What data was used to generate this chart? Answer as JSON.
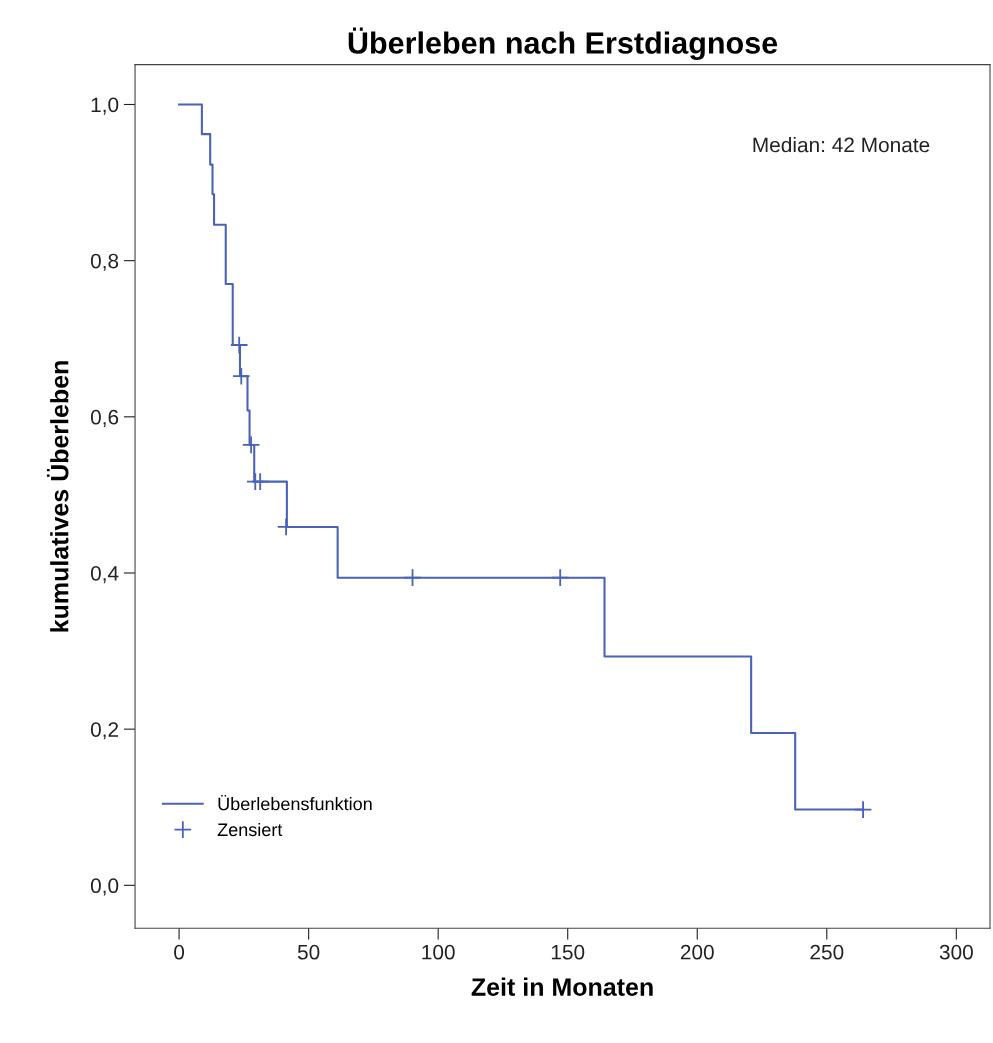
{
  "chart_data": {
    "type": "step",
    "title": "Überleben nach Erstdiagnose",
    "xlabel": "Zeit in Monaten",
    "ylabel": "kumulatives Überleben",
    "annotations": [
      "Median: 42 Monate"
    ],
    "series": [
      {
        "name": "Überlebensfunktion",
        "color": "#4a62b8",
        "marker": "none",
        "x": [
          0,
          8.8,
          12.0,
          12.9,
          13.5,
          18.0,
          20.7,
          23.5,
          26.4,
          27.2,
          29.0,
          41.6,
          61.2,
          164.2,
          220.8,
          237.8,
          264
        ],
        "values": [
          1.0,
          0.962,
          0.923,
          0.885,
          0.846,
          0.77,
          0.692,
          0.652,
          0.608,
          0.564,
          0.517,
          0.459,
          0.394,
          0.293,
          0.195,
          0.097,
          0.097
        ]
      },
      {
        "name": "Zensiert",
        "type": "scatter",
        "color": "#4a62b8",
        "marker": "cross",
        "x": [
          23.2,
          24.0,
          27.8,
          29.4,
          31.3,
          41.3,
          90.1,
          147.1,
          264
        ],
        "values": [
          0.692,
          0.652,
          0.564,
          0.517,
          0.517,
          0.459,
          0.394,
          0.394,
          0.097
        ]
      }
    ],
    "xlim": [
      -17,
      313
    ],
    "ylim": [
      -0.055,
      1.051
    ],
    "xticks": [
      0,
      50,
      100,
      150,
      200,
      250,
      300
    ],
    "yticks": [
      {
        "value": 0.0,
        "label": "0,0"
      },
      {
        "value": 0.2,
        "label": "0,2"
      },
      {
        "value": 0.4,
        "label": "0,4"
      },
      {
        "value": 0.6,
        "label": "0,6"
      },
      {
        "value": 0.8,
        "label": "0,8"
      },
      {
        "value": 1.0,
        "label": "1,0"
      }
    ],
    "grid": false,
    "legend": "bottom left"
  }
}
